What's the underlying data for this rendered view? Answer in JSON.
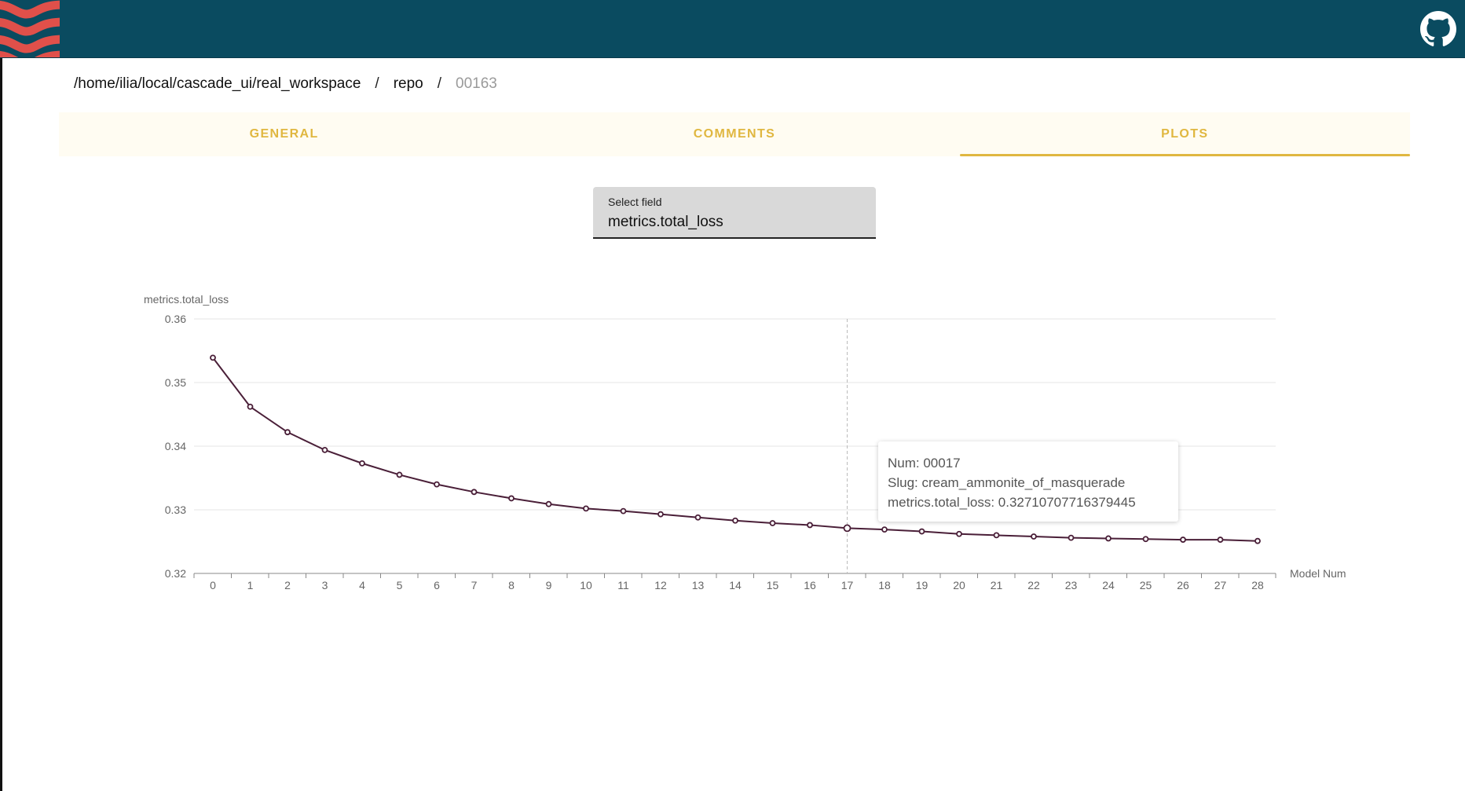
{
  "header": {
    "logo_icon": "cascade-logo",
    "github_icon": "github-icon",
    "brand_color": "#0a4b60",
    "logo_color": "#e0504a"
  },
  "breadcrumb": {
    "items": [
      "/home/ilia/local/cascade_ui/real_workspace",
      "repo"
    ],
    "current": "00163",
    "separator": "/"
  },
  "tabs": [
    {
      "label": "GENERAL",
      "active": false
    },
    {
      "label": "COMMENTS",
      "active": false
    },
    {
      "label": "PLOTS",
      "active": true
    }
  ],
  "accent_color": "#e0b740",
  "select_field": {
    "label": "Select field",
    "value": "metrics.total_loss"
  },
  "chart_data": {
    "type": "line",
    "ylabel": "metrics.total_loss",
    "xlabel": "Model Num",
    "categories": [
      "0",
      "1",
      "2",
      "3",
      "4",
      "5",
      "6",
      "7",
      "8",
      "9",
      "10",
      "11",
      "12",
      "13",
      "14",
      "15",
      "16",
      "17",
      "18",
      "19",
      "20",
      "21",
      "22",
      "23",
      "24",
      "25",
      "26",
      "27",
      "28"
    ],
    "series": [
      {
        "values": [
          0.3539,
          0.3462,
          0.3422,
          0.3394,
          0.3373,
          0.3355,
          0.334,
          0.3328,
          0.3318,
          0.3309,
          0.3302,
          0.3298,
          0.3293,
          0.3288,
          0.3283,
          0.3279,
          0.3276,
          0.32711,
          0.3269,
          0.3266,
          0.3262,
          0.326,
          0.3258,
          0.3256,
          0.3255,
          0.3254,
          0.3253,
          0.3253,
          0.3251
        ],
        "color": "#4a1f38"
      }
    ],
    "ylim": [
      0.32,
      0.36
    ],
    "yticks": [
      "0.36",
      "0.35",
      "0.34",
      "0.33",
      "0.32"
    ],
    "grid": true,
    "highlight_index": 17,
    "tooltip": {
      "num": "Num: 00017",
      "slug": "Slug: cream_ammonite_of_masquerade",
      "metric": "metrics.total_loss: 0.32710707716379445"
    }
  }
}
